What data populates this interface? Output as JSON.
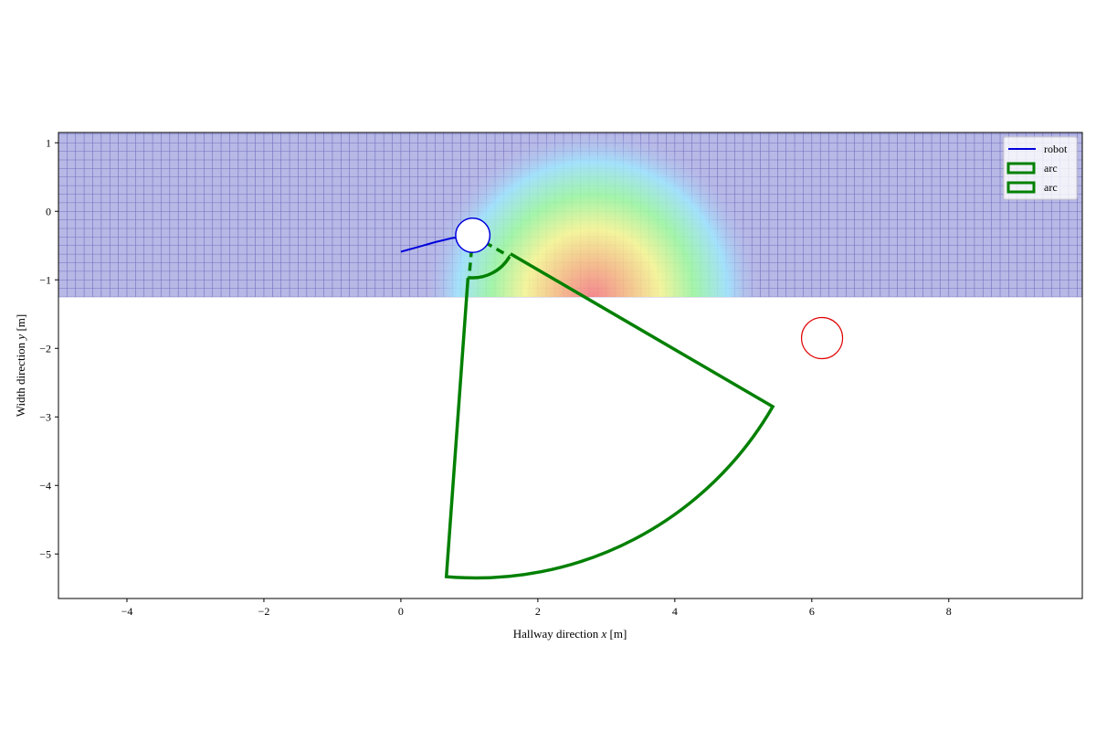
{
  "chart_data": {
    "type": "scatter",
    "xlabel_prefix": "Hallway direction ",
    "xlabel_var": "x",
    "xlabel_unit": " [m]",
    "ylabel_prefix": "Width direction ",
    "ylabel_var": "y",
    "ylabel_unit": " [m]",
    "xlim": [
      -5.0,
      9.95
    ],
    "ylim": [
      -5.65,
      1.15
    ],
    "xticks": [
      -4,
      -2,
      0,
      2,
      4,
      6,
      8
    ],
    "yticks": [
      1,
      0,
      -1,
      -2,
      -3,
      -4,
      -5
    ],
    "xtick_labels": [
      "−4",
      "−2",
      "0",
      "2",
      "4",
      "6",
      "8"
    ],
    "ytick_labels": [
      "1",
      "0",
      "−1",
      "−2",
      "−3",
      "−4",
      "−5"
    ],
    "legend": {
      "placement": "top-right",
      "entries": [
        {
          "label": "robot",
          "kind": "line",
          "color": "#0000dd"
        },
        {
          "label": "arc",
          "kind": "patch",
          "color": "#008000"
        },
        {
          "label": "arc",
          "kind": "patch",
          "color": "#008000"
        }
      ]
    },
    "grid_region": {
      "x_range": [
        -5.0,
        9.95
      ],
      "y_range": [
        -1.25,
        1.15
      ],
      "cell_size": 0.125,
      "fill_color": "#b8b8e6",
      "line_color": "#5a5ab4"
    },
    "heatmap": {
      "center": [
        2.8,
        -1.25
      ],
      "radius": 2.6,
      "colormap": [
        "#ff8080",
        "#ffc080",
        "#ffff90",
        "#a0ffa0",
        "#a0e8ff",
        "#b8b8e6"
      ]
    },
    "robot_path": {
      "color": "#0000dd",
      "x": [
        0.0,
        0.25,
        0.5,
        0.75,
        1.0,
        1.05
      ],
      "y": [
        -0.59,
        -0.52,
        -0.45,
        -0.39,
        -0.36,
        -0.36
      ]
    },
    "robot_circle": {
      "center": [
        1.05,
        -0.35
      ],
      "radius": 0.25,
      "color": "#0000dd"
    },
    "obstacle_circle": {
      "center": [
        6.15,
        -1.85
      ],
      "radius": 0.3,
      "color": "#e00000"
    },
    "inner_arc": {
      "center": [
        1.05,
        -0.35
      ],
      "radius": 0.62,
      "start_deg": 265,
      "end_deg": 330,
      "color": "#008000",
      "style": "dashed-sides"
    },
    "outer_sector": {
      "apex": [
        1.05,
        -0.35
      ],
      "corners": [
        [
          0.98,
          -0.97
        ],
        [
          1.6,
          -0.62
        ],
        [
          5.55,
          -2.45
        ],
        [
          0.6,
          -5.33
        ]
      ],
      "arc_center": [
        1.1,
        -0.35
      ],
      "arc_radius": 5.0,
      "start_deg": 265,
      "end_deg": 330,
      "color": "#008000"
    }
  }
}
